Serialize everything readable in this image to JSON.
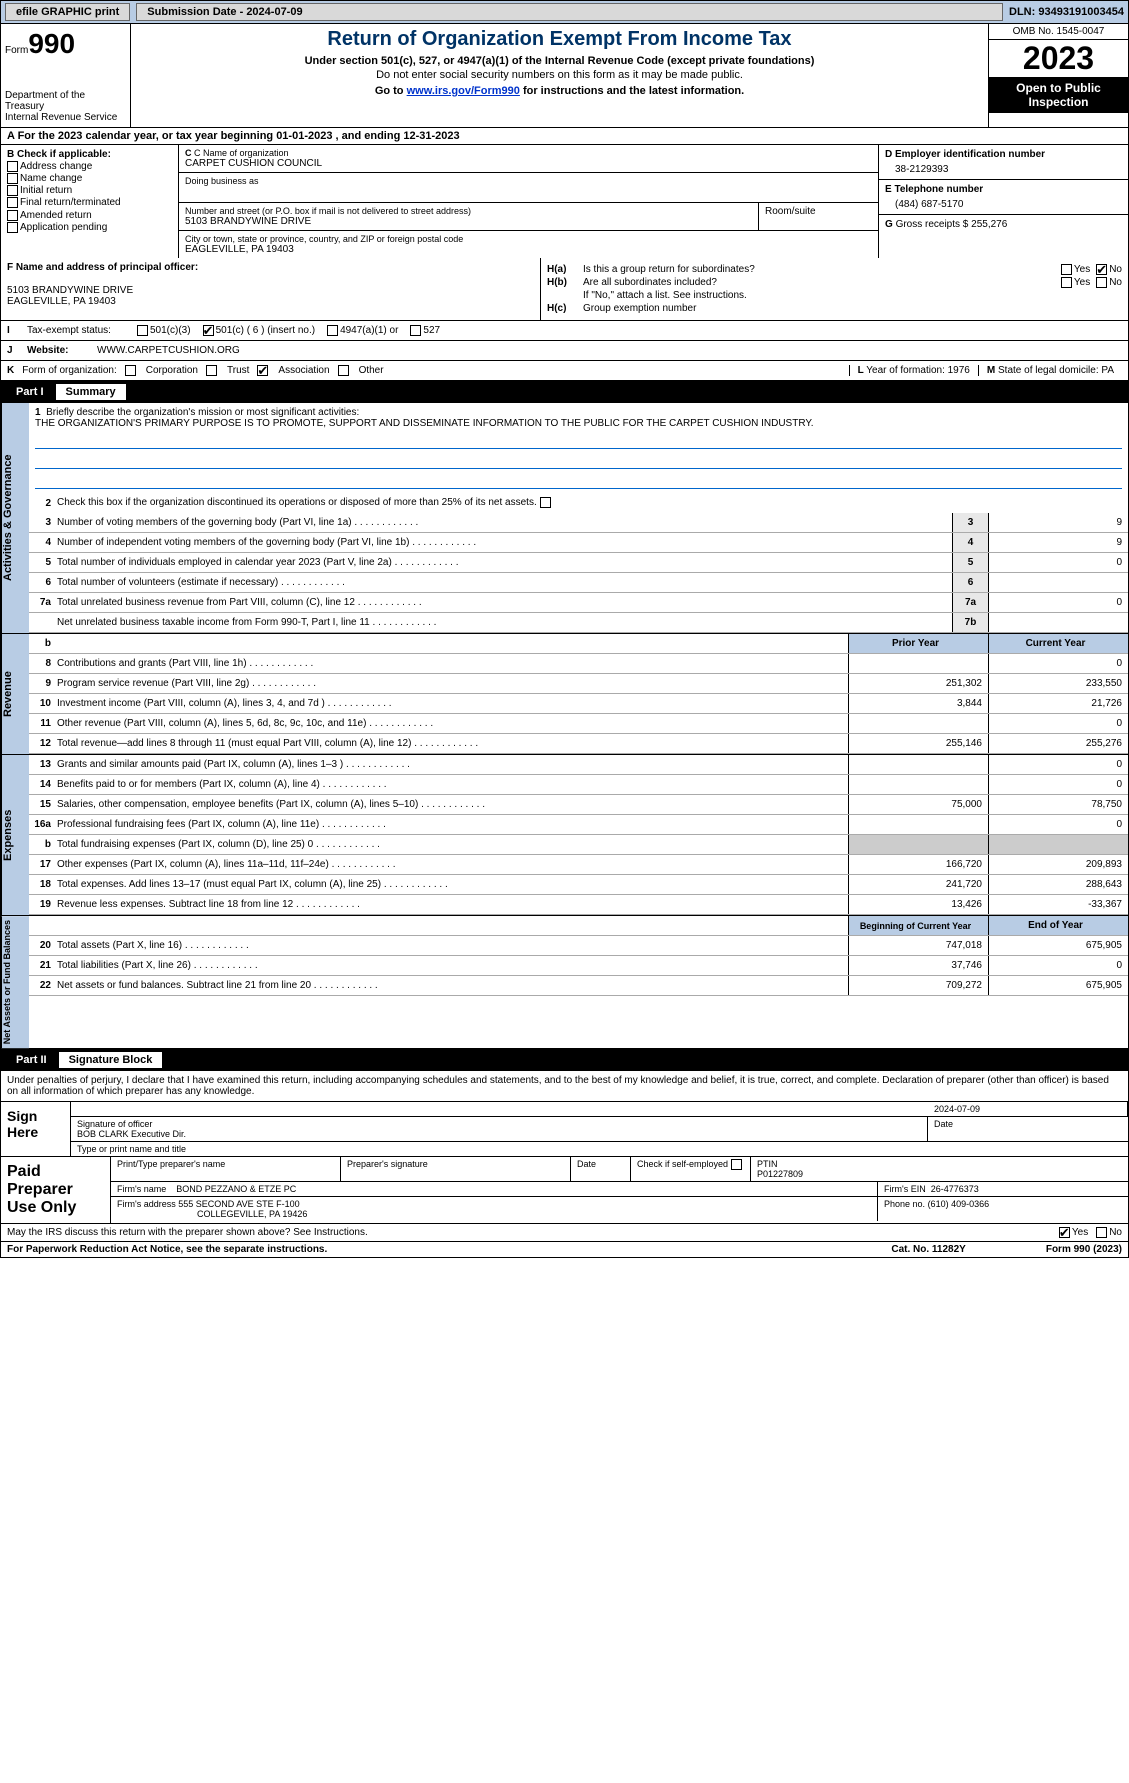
{
  "topbar": {
    "efile": "efile GRAPHIC print",
    "submission": "Submission Date - 2024-07-09",
    "dln": "DLN: 93493191003454"
  },
  "header": {
    "form_prefix": "Form",
    "form_num": "990",
    "dept": "Department of the Treasury",
    "irs": "Internal Revenue Service",
    "title": "Return of Organization Exempt From Income Tax",
    "sub1": "Under section 501(c), 527, or 4947(a)(1) of the Internal Revenue Code (except private foundations)",
    "sub2": "Do not enter social security numbers on this form as it may be made public.",
    "sub3_pre": "Go to ",
    "sub3_link": "www.irs.gov/Form990",
    "sub3_post": " for instructions and the latest information.",
    "omb": "OMB No. 1545-0047",
    "year": "2023",
    "inspection": "Open to Public Inspection"
  },
  "row_a": "A For the 2023 calendar year, or tax year beginning 01-01-2023   , and ending 12-31-2023",
  "col_b": {
    "hdr": "B Check if applicable:",
    "opts": [
      "Address change",
      "Name change",
      "Initial return",
      "Final return/terminated",
      "Amended return",
      "Application pending"
    ]
  },
  "c": {
    "name_lbl": "C Name of organization",
    "name": "CARPET CUSHION COUNCIL",
    "dba_lbl": "Doing business as",
    "addr_lbl": "Number and street (or P.O. box if mail is not delivered to street address)",
    "addr": "5103 BRANDYWINE DRIVE",
    "room_lbl": "Room/suite",
    "city_lbl": "City or town, state or province, country, and ZIP or foreign postal code",
    "city": "EAGLEVILLE, PA  19403"
  },
  "d": {
    "lbl": "D Employer identification number",
    "val": "38-2129393"
  },
  "e": {
    "lbl": "E Telephone number",
    "val": "(484) 687-5170"
  },
  "g": {
    "lbl": "G",
    "txt": "Gross receipts $",
    "val": "255,276"
  },
  "f": {
    "lbl": "F  Name and address of principal officer:",
    "addr1": "5103 BRANDYWINE DRIVE",
    "addr2": "EAGLEVILLE, PA  19403"
  },
  "h": {
    "a_lbl": "H(a)",
    "a_txt": "Is this a group return for subordinates?",
    "b_lbl": "H(b)",
    "b_txt": "Are all subordinates included?",
    "b_note": "If \"No,\" attach a list. See instructions.",
    "c_lbl": "H(c)",
    "c_txt": "Group exemption number"
  },
  "i": {
    "lbl": "I",
    "txt": "Tax-exempt status:",
    "opts": [
      "501(c)(3)",
      "501(c) ( 6 ) (insert no.)",
      "4947(a)(1) or",
      "527"
    ]
  },
  "j": {
    "lbl": "J",
    "txt": "Website:",
    "val": "WWW.CARPETCUSHION.ORG"
  },
  "k": {
    "lbl": "K",
    "txt": "Form of organization:",
    "opts": [
      "Corporation",
      "Trust",
      "Association",
      "Other"
    ]
  },
  "l": {
    "lbl": "L",
    "txt": "Year of formation: 1976"
  },
  "m": {
    "lbl": "M",
    "txt": "State of legal domicile: PA"
  },
  "part1": {
    "label": "Part I",
    "title": "Summary"
  },
  "sidelabels": [
    "Activities & Governance",
    "Revenue",
    "Expenses",
    "Net Assets or Fund Balances"
  ],
  "summary": {
    "l1_txt": "Briefly describe the organization's mission or most significant activities:",
    "l1_val": "THE ORGANIZATION'S PRIMARY PURPOSE IS TO PROMOTE, SUPPORT AND DISSEMINATE INFORMATION TO THE PUBLIC FOR THE CARPET CUSHION INDUSTRY.",
    "l2": "Check this box      if the organization discontinued its operations or disposed of more than 25% of its net assets.",
    "lines_gov": [
      {
        "n": "3",
        "t": "Number of voting members of the governing body (Part VI, line 1a)",
        "box": "3",
        "v": "9"
      },
      {
        "n": "4",
        "t": "Number of independent voting members of the governing body (Part VI, line 1b)",
        "box": "4",
        "v": "9"
      },
      {
        "n": "5",
        "t": "Total number of individuals employed in calendar year 2023 (Part V, line 2a)",
        "box": "5",
        "v": "0"
      },
      {
        "n": "6",
        "t": "Total number of volunteers (estimate if necessary)",
        "box": "6",
        "v": ""
      },
      {
        "n": "7a",
        "t": "Total unrelated business revenue from Part VIII, column (C), line 12",
        "box": "7a",
        "v": "0"
      },
      {
        "n": "",
        "t": "Net unrelated business taxable income from Form 990-T, Part I, line 11",
        "box": "7b",
        "v": ""
      }
    ],
    "col_hdr": {
      "n": "b",
      "prior": "Prior Year",
      "curr": "Current Year"
    },
    "lines_rev": [
      {
        "n": "8",
        "t": "Contributions and grants (Part VIII, line 1h)",
        "p": "",
        "c": "0"
      },
      {
        "n": "9",
        "t": "Program service revenue (Part VIII, line 2g)",
        "p": "251,302",
        "c": "233,550"
      },
      {
        "n": "10",
        "t": "Investment income (Part VIII, column (A), lines 3, 4, and 7d )",
        "p": "3,844",
        "c": "21,726"
      },
      {
        "n": "11",
        "t": "Other revenue (Part VIII, column (A), lines 5, 6d, 8c, 9c, 10c, and 11e)",
        "p": "",
        "c": "0"
      },
      {
        "n": "12",
        "t": "Total revenue—add lines 8 through 11 (must equal Part VIII, column (A), line 12)",
        "p": "255,146",
        "c": "255,276"
      }
    ],
    "lines_exp": [
      {
        "n": "13",
        "t": "Grants and similar amounts paid (Part IX, column (A), lines 1–3 )",
        "p": "",
        "c": "0"
      },
      {
        "n": "14",
        "t": "Benefits paid to or for members (Part IX, column (A), line 4)",
        "p": "",
        "c": "0"
      },
      {
        "n": "15",
        "t": "Salaries, other compensation, employee benefits (Part IX, column (A), lines 5–10)",
        "p": "75,000",
        "c": "78,750"
      },
      {
        "n": "16a",
        "t": "Professional fundraising fees (Part IX, column (A), line 11e)",
        "p": "",
        "c": "0"
      },
      {
        "n": "b",
        "t": "Total fundraising expenses (Part IX, column (D), line 25) 0",
        "p": "shaded",
        "c": "shaded"
      },
      {
        "n": "17",
        "t": "Other expenses (Part IX, column (A), lines 11a–11d, 11f–24e)",
        "p": "166,720",
        "c": "209,893"
      },
      {
        "n": "18",
        "t": "Total expenses. Add lines 13–17 (must equal Part IX, column (A), line 25)",
        "p": "241,720",
        "c": "288,643"
      },
      {
        "n": "19",
        "t": "Revenue less expenses. Subtract line 18 from line 12",
        "p": "13,426",
        "c": "-33,367"
      }
    ],
    "col_hdr2": {
      "prior": "Beginning of Current Year",
      "curr": "End of Year"
    },
    "lines_net": [
      {
        "n": "20",
        "t": "Total assets (Part X, line 16)",
        "p": "747,018",
        "c": "675,905"
      },
      {
        "n": "21",
        "t": "Total liabilities (Part X, line 26)",
        "p": "37,746",
        "c": "0"
      },
      {
        "n": "22",
        "t": "Net assets or fund balances. Subtract line 21 from line 20",
        "p": "709,272",
        "c": "675,905"
      }
    ]
  },
  "part2": {
    "label": "Part II",
    "title": "Signature Block"
  },
  "sig": {
    "intro": "Under penalties of perjury, I declare that I have examined this return, including accompanying schedules and statements, and to the best of my knowledge and belief, it is true, correct, and complete. Declaration of preparer (other than officer) is based on all information of which preparer has any knowledge.",
    "sign_here": "Sign Here",
    "date": "2024-07-09",
    "sig_lbl": "Signature of officer",
    "officer": "BOB CLARK  Executive Dir.",
    "name_lbl": "Type or print name and title",
    "date_lbl": "Date",
    "paid": "Paid Preparer Use Only",
    "prep_name_lbl": "Print/Type preparer's name",
    "prep_sig_lbl": "Preparer's signature",
    "chk_lbl": "Check       if self-employed",
    "ptin_lbl": "PTIN",
    "ptin": "P01227809",
    "firm_name_lbl": "Firm's name",
    "firm_name": "BOND PEZZANO & ETZE PC",
    "firm_ein_lbl": "Firm's EIN",
    "firm_ein": "26-4776373",
    "firm_addr_lbl": "Firm's address",
    "firm_addr1": "555 SECOND AVE STE F-100",
    "firm_addr2": "COLLEGEVILLE, PA  19426",
    "phone_lbl": "Phone no.",
    "phone": "(610) 409-0366",
    "discuss": "May the IRS discuss this return with the preparer shown above? See Instructions."
  },
  "footer": {
    "l": "For Paperwork Reduction Act Notice, see the separate instructions.",
    "m": "Cat. No. 11282Y",
    "r": "Form 990 (2023)"
  },
  "yesno": {
    "yes": "Yes",
    "no": "No"
  }
}
